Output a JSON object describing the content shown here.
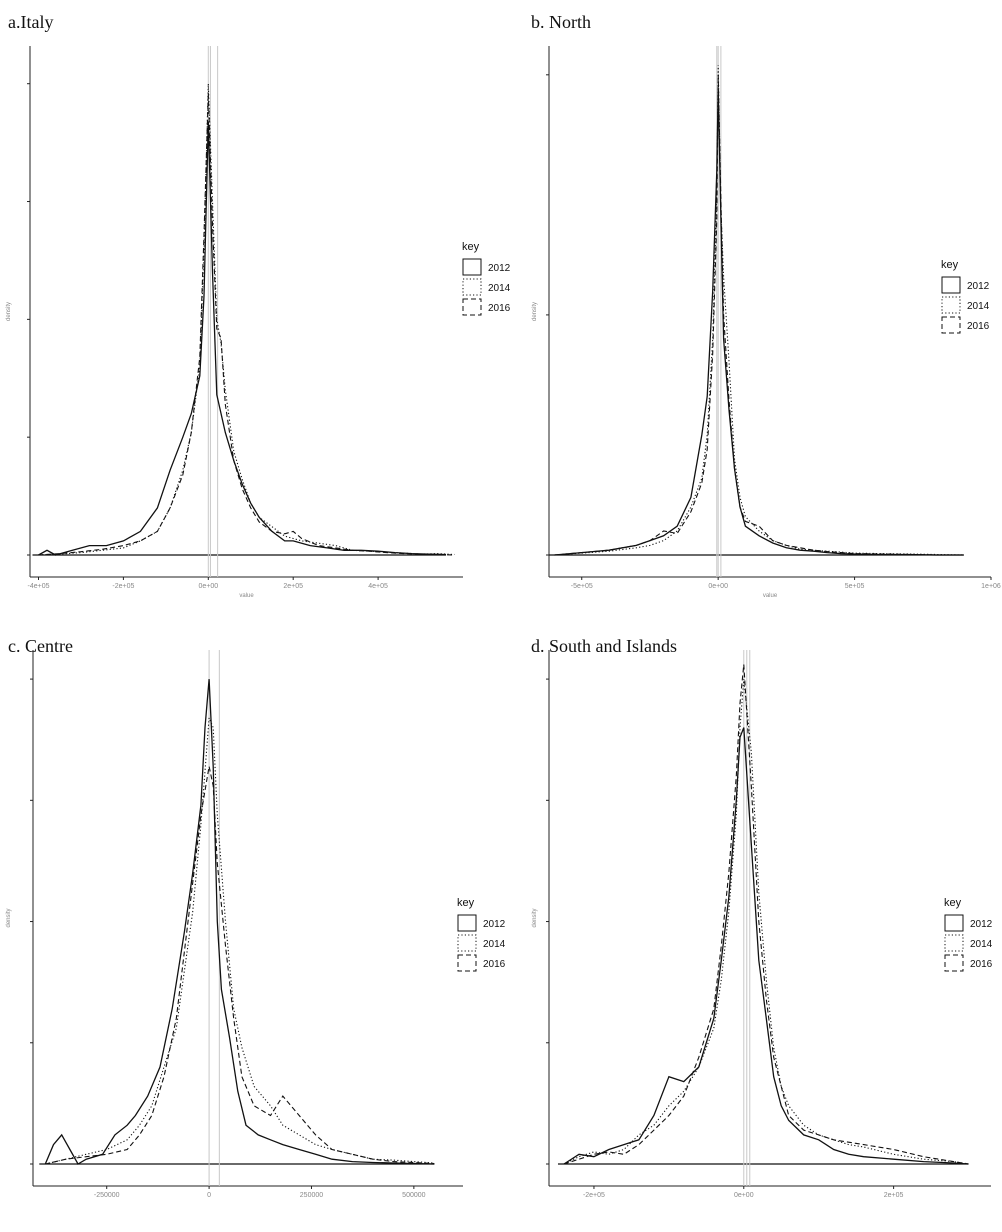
{
  "figure": {
    "panels": [
      {
        "id": "a",
        "title": "a.Italy"
      },
      {
        "id": "b",
        "title": "b. North"
      },
      {
        "id": "c",
        "title": "c. Centre"
      },
      {
        "id": "d",
        "title": "d. South and Islands"
      }
    ]
  },
  "legend": {
    "title": "key",
    "items": [
      "2012",
      "2014",
      "2016"
    ]
  },
  "line_styles": {
    "2012": "solid",
    "2014": "dotted",
    "2016": "dashed"
  },
  "colors": {
    "lines": "#111111",
    "reference_lines": "#c8c8c8",
    "axis": "#222222",
    "tick_labels": "#888888"
  },
  "chart_data": [
    {
      "type": "line",
      "title": "a.Italy",
      "xlabel": "value",
      "ylabel": "density",
      "x_ticks": [
        {
          "v": -400000,
          "label": "-4e+05"
        },
        {
          "v": -200000,
          "label": "-2e+05"
        },
        {
          "v": 0,
          "label": "0e+00"
        },
        {
          "v": 200000,
          "label": "2e+05"
        },
        {
          "v": 400000,
          "label": "4e+05"
        }
      ],
      "xlim": [
        -420000,
        600000
      ],
      "ylim": [
        0,
        1.08
      ],
      "y_ticks": [
        0,
        0.25,
        0.5,
        0.75,
        1.0
      ],
      "vlines": [
        0,
        5000,
        22000
      ],
      "grid": false,
      "legend_position": "right",
      "series": [
        {
          "name": "2012",
          "style": "solid",
          "x": [
            -400000,
            -380000,
            -360000,
            -320000,
            -280000,
            -240000,
            -200000,
            -160000,
            -120000,
            -90000,
            -60000,
            -40000,
            -20000,
            -10000,
            0,
            10000,
            20000,
            40000,
            60000,
            80000,
            100000,
            120000,
            150000,
            180000,
            200000,
            240000,
            280000,
            320000,
            360000,
            400000,
            440000,
            480000,
            520000,
            560000
          ],
          "y": [
            0.0,
            0.01,
            0.0,
            0.01,
            0.02,
            0.02,
            0.03,
            0.05,
            0.1,
            0.18,
            0.25,
            0.3,
            0.38,
            0.55,
            0.92,
            0.6,
            0.34,
            0.26,
            0.2,
            0.15,
            0.11,
            0.08,
            0.05,
            0.03,
            0.03,
            0.02,
            0.015,
            0.01,
            0.01,
            0.008,
            0.005,
            0.003,
            0.002,
            0.001
          ]
        },
        {
          "name": "2014",
          "style": "dotted",
          "x": [
            -400000,
            -350000,
            -300000,
            -250000,
            -200000,
            -160000,
            -120000,
            -90000,
            -60000,
            -40000,
            -20000,
            -10000,
            0,
            10000,
            20000,
            30000,
            40000,
            60000,
            80000,
            100000,
            120000,
            150000,
            180000,
            200000,
            220000,
            260000,
            300000,
            340000,
            380000,
            420000,
            460000,
            500000,
            540000,
            580000
          ],
          "y": [
            0.0,
            0.002,
            0.005,
            0.01,
            0.015,
            0.03,
            0.05,
            0.1,
            0.18,
            0.26,
            0.4,
            0.65,
            1.0,
            0.75,
            0.5,
            0.45,
            0.35,
            0.22,
            0.16,
            0.11,
            0.08,
            0.06,
            0.04,
            0.035,
            0.03,
            0.025,
            0.02,
            0.01,
            0.008,
            0.006,
            0.004,
            0.002,
            0.003,
            0.001
          ]
        },
        {
          "name": "2016",
          "style": "dashed",
          "x": [
            -400000,
            -350000,
            -300000,
            -250000,
            -200000,
            -160000,
            -120000,
            -90000,
            -60000,
            -40000,
            -20000,
            -10000,
            0,
            10000,
            20000,
            30000,
            40000,
            60000,
            80000,
            100000,
            120000,
            150000,
            180000,
            200000,
            220000,
            260000,
            300000,
            340000,
            380000,
            420000,
            460000,
            500000,
            540000,
            580000
          ],
          "y": [
            0.0,
            0.003,
            0.007,
            0.012,
            0.02,
            0.03,
            0.05,
            0.1,
            0.17,
            0.26,
            0.42,
            0.68,
            0.98,
            0.7,
            0.48,
            0.46,
            0.32,
            0.2,
            0.14,
            0.1,
            0.07,
            0.05,
            0.045,
            0.05,
            0.035,
            0.02,
            0.015,
            0.01,
            0.008,
            0.005,
            0.003,
            0.002,
            0.001,
            0.0
          ]
        }
      ]
    },
    {
      "type": "line",
      "title": "b. North",
      "xlabel": "value",
      "ylabel": "density",
      "x_ticks": [
        {
          "v": -500000,
          "label": "-5e+05"
        },
        {
          "v": 0,
          "label": "0e+00"
        },
        {
          "v": 500000,
          "label": "5e+05"
        },
        {
          "v": 1000000,
          "label": "1e+06"
        }
      ],
      "xlim": [
        -620000,
        1000000
      ],
      "ylim": [
        0,
        1.06
      ],
      "y_ticks": [
        0,
        0.5,
        1.0
      ],
      "vlines": [
        -5000,
        0,
        10000
      ],
      "grid": false,
      "legend_position": "right",
      "series": [
        {
          "name": "2012",
          "style": "solid",
          "x": [
            -600000,
            -500000,
            -400000,
            -300000,
            -250000,
            -200000,
            -150000,
            -100000,
            -60000,
            -40000,
            -20000,
            -5000,
            0,
            10000,
            20000,
            40000,
            60000,
            80000,
            100000,
            150000,
            200000,
            250000,
            300000,
            350000,
            400000,
            450000,
            500000,
            600000,
            700000,
            800000,
            900000
          ],
          "y": [
            0.0,
            0.005,
            0.01,
            0.02,
            0.03,
            0.04,
            0.06,
            0.12,
            0.25,
            0.33,
            0.55,
            0.8,
            0.97,
            0.7,
            0.45,
            0.3,
            0.18,
            0.1,
            0.06,
            0.04,
            0.025,
            0.015,
            0.01,
            0.008,
            0.005,
            0.003,
            0.002,
            0.001,
            0.001,
            0.0,
            0.0
          ]
        },
        {
          "name": "2014",
          "style": "dotted",
          "x": [
            -600000,
            -500000,
            -400000,
            -300000,
            -250000,
            -200000,
            -150000,
            -100000,
            -60000,
            -40000,
            -20000,
            -5000,
            0,
            10000,
            20000,
            40000,
            60000,
            80000,
            100000,
            150000,
            200000,
            250000,
            300000,
            350000,
            400000,
            450000,
            500000,
            600000,
            700000,
            800000,
            900000
          ],
          "y": [
            0.0,
            0.004,
            0.008,
            0.015,
            0.02,
            0.03,
            0.05,
            0.1,
            0.16,
            0.25,
            0.45,
            0.75,
            1.02,
            0.72,
            0.58,
            0.4,
            0.2,
            0.12,
            0.08,
            0.05,
            0.03,
            0.02,
            0.012,
            0.01,
            0.008,
            0.006,
            0.004,
            0.003,
            0.002,
            0.001,
            0.0
          ]
        },
        {
          "name": "2016",
          "style": "dashed",
          "x": [
            -600000,
            -500000,
            -400000,
            -300000,
            -250000,
            -200000,
            -150000,
            -100000,
            -60000,
            -40000,
            -20000,
            -5000,
            0,
            10000,
            20000,
            40000,
            60000,
            80000,
            100000,
            150000,
            200000,
            250000,
            300000,
            350000,
            400000,
            450000,
            500000,
            600000,
            700000,
            800000,
            900000
          ],
          "y": [
            0.0,
            0.005,
            0.01,
            0.02,
            0.03,
            0.05,
            0.045,
            0.09,
            0.15,
            0.22,
            0.42,
            0.7,
            1.0,
            0.74,
            0.5,
            0.32,
            0.18,
            0.1,
            0.07,
            0.06,
            0.03,
            0.02,
            0.015,
            0.01,
            0.007,
            0.005,
            0.003,
            0.002,
            0.001,
            0.0,
            0.0
          ]
        }
      ]
    },
    {
      "type": "line",
      "title": "c. Centre",
      "xlabel": "",
      "ylabel": "density",
      "x_ticks": [
        {
          "v": -250000,
          "label": "-250000"
        },
        {
          "v": 0,
          "label": "0"
        },
        {
          "v": 250000,
          "label": "250000"
        },
        {
          "v": 500000,
          "label": "500000"
        }
      ],
      "xlim": [
        -430000,
        620000
      ],
      "ylim": [
        0,
        1.06
      ],
      "y_ticks": [
        0,
        0.25,
        0.5,
        0.75,
        1.0
      ],
      "vlines": [
        0,
        25000
      ],
      "grid": false,
      "legend_position": "right",
      "series": [
        {
          "name": "2012",
          "style": "solid",
          "x": [
            -400000,
            -380000,
            -360000,
            -340000,
            -320000,
            -300000,
            -260000,
            -230000,
            -200000,
            -180000,
            -150000,
            -120000,
            -90000,
            -60000,
            -40000,
            -20000,
            -10000,
            0,
            10000,
            20000,
            30000,
            50000,
            70000,
            90000,
            120000,
            150000,
            180000,
            220000,
            260000,
            300000,
            350000,
            400000,
            450000,
            500000,
            550000
          ],
          "y": [
            0.0,
            0.04,
            0.06,
            0.03,
            0.0,
            0.01,
            0.02,
            0.06,
            0.08,
            0.1,
            0.14,
            0.2,
            0.32,
            0.48,
            0.6,
            0.74,
            0.9,
            1.0,
            0.82,
            0.5,
            0.36,
            0.26,
            0.15,
            0.08,
            0.06,
            0.05,
            0.04,
            0.03,
            0.02,
            0.01,
            0.005,
            0.003,
            0.002,
            0.001,
            0.0
          ]
        },
        {
          "name": "2014",
          "style": "dotted",
          "x": [
            -400000,
            -350000,
            -300000,
            -250000,
            -200000,
            -170000,
            -140000,
            -110000,
            -80000,
            -60000,
            -40000,
            -20000,
            0,
            10000,
            20000,
            40000,
            60000,
            80000,
            110000,
            150000,
            180000,
            220000,
            260000,
            300000,
            350000,
            400000,
            450000,
            500000,
            550000
          ],
          "y": [
            0.0,
            0.01,
            0.02,
            0.03,
            0.05,
            0.08,
            0.12,
            0.2,
            0.28,
            0.4,
            0.52,
            0.7,
            0.92,
            0.9,
            0.72,
            0.5,
            0.32,
            0.24,
            0.16,
            0.12,
            0.08,
            0.06,
            0.04,
            0.03,
            0.02,
            0.01,
            0.008,
            0.005,
            0.002
          ]
        },
        {
          "name": "2016",
          "style": "dashed",
          "x": [
            -400000,
            -350000,
            -300000,
            -250000,
            -200000,
            -170000,
            -140000,
            -110000,
            -80000,
            -60000,
            -40000,
            -20000,
            0,
            10000,
            20000,
            40000,
            60000,
            80000,
            110000,
            150000,
            180000,
            220000,
            260000,
            300000,
            350000,
            400000,
            450000,
            500000,
            550000
          ],
          "y": [
            0.0,
            0.01,
            0.015,
            0.02,
            0.03,
            0.06,
            0.1,
            0.18,
            0.3,
            0.44,
            0.58,
            0.72,
            0.82,
            0.78,
            0.62,
            0.45,
            0.3,
            0.18,
            0.12,
            0.1,
            0.14,
            0.1,
            0.06,
            0.03,
            0.02,
            0.01,
            0.005,
            0.003,
            0.001
          ]
        }
      ]
    },
    {
      "type": "line",
      "title": "d. South and Islands",
      "xlabel": "",
      "ylabel": "density",
      "x_ticks": [
        {
          "v": -200000,
          "label": "-2e+05"
        },
        {
          "v": 0,
          "label": "0e+00"
        },
        {
          "v": 200000,
          "label": "2e+05"
        }
      ],
      "xlim": [
        -260000,
        330000
      ],
      "ylim": [
        0,
        1.06
      ],
      "y_ticks": [
        0,
        0.25,
        0.5,
        0.75,
        1.0
      ],
      "vlines": [
        0,
        4000,
        8000
      ],
      "grid": false,
      "legend_position": "right",
      "series": [
        {
          "name": "2012",
          "style": "solid",
          "x": [
            -240000,
            -220000,
            -200000,
            -180000,
            -160000,
            -140000,
            -120000,
            -100000,
            -80000,
            -60000,
            -40000,
            -30000,
            -20000,
            -10000,
            -5000,
            0,
            10000,
            20000,
            30000,
            40000,
            50000,
            60000,
            80000,
            100000,
            120000,
            140000,
            160000,
            200000,
            240000,
            280000,
            300000
          ],
          "y": [
            0.0,
            0.02,
            0.015,
            0.03,
            0.04,
            0.05,
            0.1,
            0.18,
            0.17,
            0.2,
            0.3,
            0.42,
            0.55,
            0.75,
            0.88,
            0.9,
            0.66,
            0.42,
            0.3,
            0.18,
            0.12,
            0.09,
            0.06,
            0.05,
            0.03,
            0.02,
            0.015,
            0.01,
            0.005,
            0.002,
            0.0
          ]
        },
        {
          "name": "2014",
          "style": "dotted",
          "x": [
            -240000,
            -220000,
            -200000,
            -180000,
            -160000,
            -140000,
            -120000,
            -100000,
            -80000,
            -60000,
            -40000,
            -30000,
            -20000,
            -10000,
            -5000,
            0,
            10000,
            20000,
            30000,
            40000,
            50000,
            60000,
            80000,
            100000,
            120000,
            140000,
            160000,
            200000,
            240000,
            280000,
            300000
          ],
          "y": [
            0.0,
            0.015,
            0.025,
            0.02,
            0.03,
            0.06,
            0.08,
            0.12,
            0.15,
            0.2,
            0.28,
            0.38,
            0.52,
            0.72,
            0.9,
            1.0,
            0.85,
            0.56,
            0.38,
            0.24,
            0.16,
            0.12,
            0.08,
            0.06,
            0.05,
            0.04,
            0.035,
            0.02,
            0.01,
            0.005,
            0.0
          ]
        },
        {
          "name": "2016",
          "style": "dashed",
          "x": [
            -240000,
            -220000,
            -200000,
            -180000,
            -160000,
            -140000,
            -120000,
            -100000,
            -80000,
            -60000,
            -40000,
            -30000,
            -20000,
            -10000,
            -5000,
            0,
            10000,
            20000,
            30000,
            40000,
            50000,
            60000,
            80000,
            100000,
            120000,
            140000,
            160000,
            200000,
            240000,
            280000,
            300000
          ],
          "y": [
            0.0,
            0.01,
            0.02,
            0.025,
            0.02,
            0.04,
            0.07,
            0.1,
            0.14,
            0.22,
            0.32,
            0.45,
            0.6,
            0.8,
            0.95,
            1.03,
            0.78,
            0.5,
            0.34,
            0.22,
            0.16,
            0.1,
            0.07,
            0.06,
            0.05,
            0.045,
            0.04,
            0.03,
            0.015,
            0.005,
            0.0
          ]
        }
      ]
    }
  ]
}
